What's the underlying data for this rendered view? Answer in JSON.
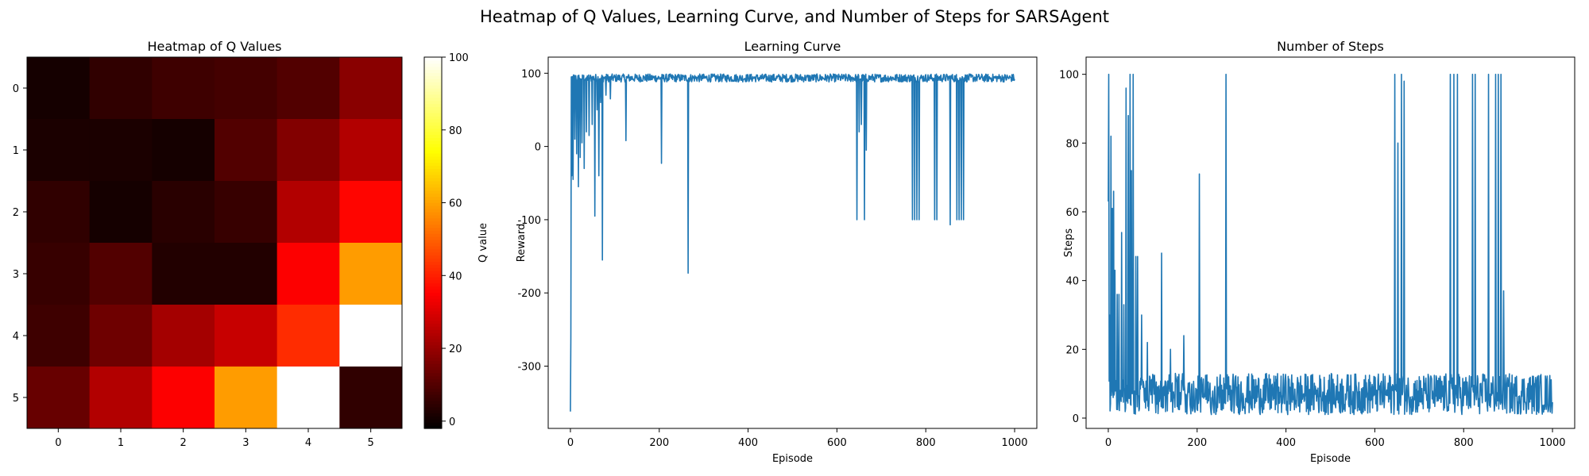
{
  "figure": {
    "suptitle": "Heatmap of Q Values, Learning Curve, and Number of Steps for SARSAgent"
  },
  "chart_data": [
    {
      "type": "heatmap",
      "title": "Heatmap of Q Values",
      "xlabel": "",
      "ylabel": "",
      "x_ticks": [
        "0",
        "1",
        "2",
        "3",
        "4",
        "5"
      ],
      "y_ticks": [
        "0",
        "1",
        "2",
        "3",
        "4",
        "5"
      ],
      "values": [
        [
          1,
          5,
          7,
          8,
          10,
          18
        ],
        [
          2,
          2,
          1,
          10,
          17,
          24
        ],
        [
          5,
          1,
          4,
          6,
          24,
          36
        ],
        [
          6,
          10,
          3,
          3,
          35,
          59
        ],
        [
          7,
          14,
          22,
          27,
          42,
          100
        ],
        [
          13,
          24,
          35,
          59,
          100,
          5
        ]
      ],
      "colorbar": {
        "label": "Q value",
        "range": [
          -2,
          100
        ],
        "ticks": [
          0,
          20,
          40,
          60,
          80,
          100
        ]
      },
      "colormap": "hot"
    },
    {
      "type": "line",
      "title": "Learning Curve",
      "xlabel": "Episode",
      "ylabel": "Reward",
      "xlim": [
        -50,
        1050
      ],
      "ylim": [
        -385,
        122
      ],
      "x_ticks": [
        0,
        200,
        400,
        600,
        800,
        1000
      ],
      "y_ticks": [
        -300,
        -200,
        -100,
        0,
        100
      ],
      "series_color": "#1f77b4",
      "n_points": 1001,
      "baseline_band": [
        88,
        99
      ],
      "spikes": [
        {
          "x": 0,
          "y": -362
        },
        {
          "x": 1,
          "y": -260
        },
        {
          "x": 3,
          "y": -40
        },
        {
          "x": 6,
          "y": -45
        },
        {
          "x": 10,
          "y": 10
        },
        {
          "x": 14,
          "y": -10
        },
        {
          "x": 18,
          "y": -55
        },
        {
          "x": 22,
          "y": -15
        },
        {
          "x": 26,
          "y": 5
        },
        {
          "x": 31,
          "y": -30
        },
        {
          "x": 36,
          "y": 20
        },
        {
          "x": 42,
          "y": 15
        },
        {
          "x": 49,
          "y": 30
        },
        {
          "x": 55,
          "y": -95
        },
        {
          "x": 60,
          "y": 50
        },
        {
          "x": 64,
          "y": -40
        },
        {
          "x": 68,
          "y": 60
        },
        {
          "x": 72,
          "y": -155
        },
        {
          "x": 80,
          "y": 70
        },
        {
          "x": 90,
          "y": 65
        },
        {
          "x": 125,
          "y": 8
        },
        {
          "x": 205,
          "y": -23
        },
        {
          "x": 265,
          "y": -173
        },
        {
          "x": 645,
          "y": -100
        },
        {
          "x": 650,
          "y": 20
        },
        {
          "x": 655,
          "y": 30
        },
        {
          "x": 662,
          "y": -100
        },
        {
          "x": 666,
          "y": -5
        },
        {
          "x": 770,
          "y": -100
        },
        {
          "x": 775,
          "y": -100
        },
        {
          "x": 780,
          "y": -100
        },
        {
          "x": 785,
          "y": -100
        },
        {
          "x": 820,
          "y": -100
        },
        {
          "x": 825,
          "y": -100
        },
        {
          "x": 855,
          "y": -107
        },
        {
          "x": 870,
          "y": -100
        },
        {
          "x": 875,
          "y": -100
        },
        {
          "x": 880,
          "y": -100
        },
        {
          "x": 885,
          "y": -100
        }
      ]
    },
    {
      "type": "line",
      "title": "Number of Steps",
      "xlabel": "Episode",
      "ylabel": "Steps",
      "xlim": [
        -50,
        1050
      ],
      "ylim": [
        -3,
        105
      ],
      "x_ticks": [
        0,
        200,
        400,
        600,
        800,
        1000
      ],
      "y_ticks": [
        0,
        20,
        40,
        60,
        80,
        100
      ],
      "series_color": "#1f77b4",
      "n_points": 1001,
      "baseline_band": [
        1,
        13
      ],
      "spikes": [
        {
          "x": 0,
          "y": 63
        },
        {
          "x": 1,
          "y": 100
        },
        {
          "x": 3,
          "y": 30
        },
        {
          "x": 6,
          "y": 82
        },
        {
          "x": 9,
          "y": 61
        },
        {
          "x": 12,
          "y": 66
        },
        {
          "x": 15,
          "y": 43
        },
        {
          "x": 20,
          "y": 36
        },
        {
          "x": 24,
          "y": 36
        },
        {
          "x": 30,
          "y": 54
        },
        {
          "x": 35,
          "y": 33
        },
        {
          "x": 40,
          "y": 96
        },
        {
          "x": 45,
          "y": 88
        },
        {
          "x": 49,
          "y": 100
        },
        {
          "x": 52,
          "y": 72
        },
        {
          "x": 56,
          "y": 100
        },
        {
          "x": 62,
          "y": 47
        },
        {
          "x": 66,
          "y": 47
        },
        {
          "x": 75,
          "y": 30
        },
        {
          "x": 88,
          "y": 22
        },
        {
          "x": 120,
          "y": 48
        },
        {
          "x": 140,
          "y": 20
        },
        {
          "x": 170,
          "y": 24
        },
        {
          "x": 205,
          "y": 71
        },
        {
          "x": 265,
          "y": 100
        },
        {
          "x": 645,
          "y": 100
        },
        {
          "x": 652,
          "y": 80
        },
        {
          "x": 660,
          "y": 100
        },
        {
          "x": 666,
          "y": 98
        },
        {
          "x": 770,
          "y": 100
        },
        {
          "x": 778,
          "y": 100
        },
        {
          "x": 786,
          "y": 100
        },
        {
          "x": 820,
          "y": 100
        },
        {
          "x": 826,
          "y": 100
        },
        {
          "x": 856,
          "y": 100
        },
        {
          "x": 872,
          "y": 100
        },
        {
          "x": 878,
          "y": 100
        },
        {
          "x": 884,
          "y": 100
        },
        {
          "x": 890,
          "y": 37
        }
      ]
    }
  ]
}
